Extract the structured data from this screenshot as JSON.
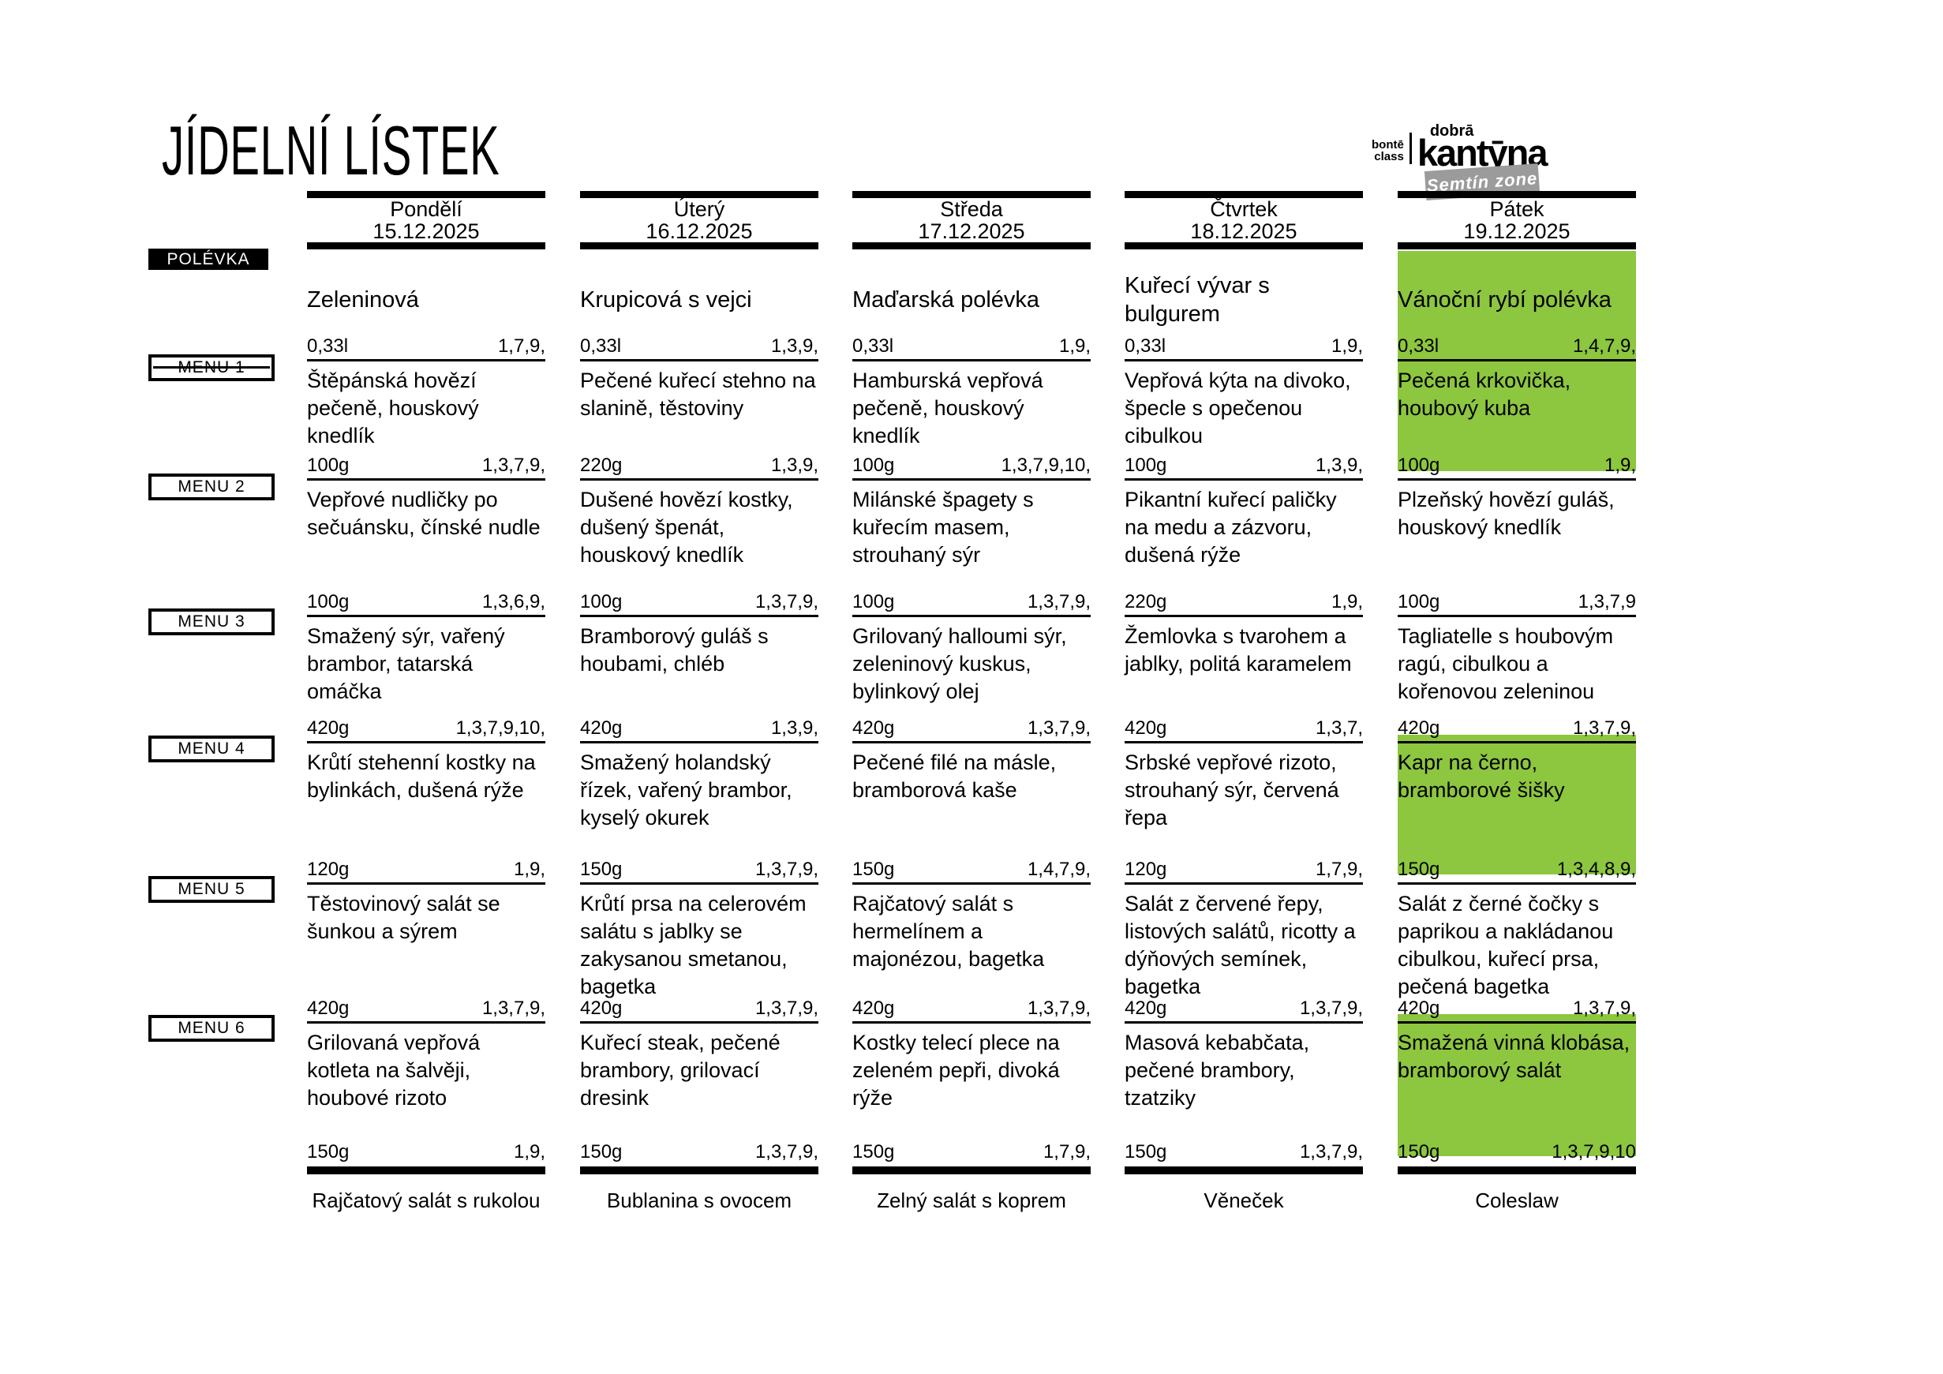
{
  "title": "JÍDELNÍ LÍSTEK",
  "logo": {
    "top_small": "bontē",
    "bottom_small": "class",
    "brand_small": "dobrā",
    "brand": "kantȳna",
    "ribbon": "Semtín zone"
  },
  "colors": {
    "highlight": "#8dc63f",
    "ribbon_gray": "#9b9b9b"
  },
  "row_labels": {
    "soup": "POLÉVKA",
    "menus": [
      "MENU 1",
      "MENU 2",
      "MENU 3",
      "MENU 4",
      "MENU 5",
      "MENU 6"
    ]
  },
  "days": [
    {
      "name": "Pondělí",
      "date": "15.12.2025",
      "soup": "Zeleninová",
      "items": [
        {
          "weight": "0,33l",
          "allergens": "1,7,9,",
          "dish": "Štěpánská hovězí pečeně, houskový knedlík"
        },
        {
          "weight": "100g",
          "allergens": "1,3,7,9,",
          "dish": "Vepřové nudličky po sečuánsku, čínské nudle"
        },
        {
          "weight": "100g",
          "allergens": "1,3,6,9,",
          "dish": "Smažený sýr, vařený brambor, tatarská omáčka"
        },
        {
          "weight": "420g",
          "allergens": "1,3,7,9,10,",
          "dish": "Krůtí stehenní kostky na bylinkách, dušená rýže"
        },
        {
          "weight": "120g",
          "allergens": "1,9,",
          "dish": "Těstovinový salát se šunkou a sýrem"
        },
        {
          "weight": "420g",
          "allergens": "1,3,7,9,",
          "dish": "Grilovaná vepřová kotleta na šalvěji, houbové rizoto"
        }
      ],
      "dessert": {
        "weight": "150g",
        "allergens": "1,9,",
        "name": "Rajčatový salát s rukolou"
      }
    },
    {
      "name": "Úterý",
      "date": "16.12.2025",
      "soup": "Krupicová s vejci",
      "items": [
        {
          "weight": "0,33l",
          "allergens": "1,3,9,",
          "dish": "Pečené kuřecí stehno na slanině, těstoviny"
        },
        {
          "weight": "220g",
          "allergens": "1,3,9,",
          "dish": "Dušené hovězí kostky, dušený špenát, houskový knedlík"
        },
        {
          "weight": "100g",
          "allergens": "1,3,7,9,",
          "dish": "Bramborový guláš s houbami, chléb"
        },
        {
          "weight": "420g",
          "allergens": "1,3,9,",
          "dish": "Smažený holandský řízek, vařený brambor, kyselý okurek"
        },
        {
          "weight": "150g",
          "allergens": "1,3,7,9,",
          "dish": "Krůtí prsa na celerovém salátu s jablky se zakysanou smetanou, bagetka"
        },
        {
          "weight": "420g",
          "allergens": "1,3,7,9,",
          "dish": "Kuřecí steak, pečené brambory, grilovací dresink"
        }
      ],
      "dessert": {
        "weight": "150g",
        "allergens": "1,3,7,9,",
        "name": "Bublanina s ovocem"
      }
    },
    {
      "name": "Středa",
      "date": "17.12.2025",
      "soup": "Maďarská polévka",
      "items": [
        {
          "weight": "0,33l",
          "allergens": "1,9,",
          "dish": "Hamburská vepřová pečeně, houskový knedlík"
        },
        {
          "weight": "100g",
          "allergens": "1,3,7,9,10,",
          "dish": "Milánské špagety s kuřecím masem, strouhaný sýr"
        },
        {
          "weight": "100g",
          "allergens": "1,3,7,9,",
          "dish": "Grilovaný halloumi sýr, zeleninový kuskus, bylinkový olej"
        },
        {
          "weight": "420g",
          "allergens": "1,3,7,9,",
          "dish": "Pečené filé na másle, bramborová kaše"
        },
        {
          "weight": "150g",
          "allergens": "1,4,7,9,",
          "dish": "Rajčatový salát s hermelínem a majonézou, bagetka"
        },
        {
          "weight": "420g",
          "allergens": "1,3,7,9,",
          "dish": "Kostky telecí plece na zeleném pepři, divoká rýže"
        }
      ],
      "dessert": {
        "weight": "150g",
        "allergens": "1,7,9,",
        "name": "Zelný salát s koprem"
      }
    },
    {
      "name": "Čtvrtek",
      "date": "18.12.2025",
      "soup": "Kuřecí vývar s bulgurem",
      "items": [
        {
          "weight": "0,33l",
          "allergens": "1,9,",
          "dish": "Vepřová kýta na divoko, špecle s opečenou cibulkou"
        },
        {
          "weight": "100g",
          "allergens": "1,3,9,",
          "dish": "Pikantní kuřecí paličky na medu a zázvoru, dušená rýže"
        },
        {
          "weight": "220g",
          "allergens": "1,9,",
          "dish": "Žemlovka s tvarohem a jablky, politá karamelem"
        },
        {
          "weight": "420g",
          "allergens": "1,3,7,",
          "dish": "Srbské vepřové rizoto, strouhaný sýr, červená řepa"
        },
        {
          "weight": "120g",
          "allergens": "1,7,9,",
          "dish": "Salát z červené řepy, listových salátů, ricotty a dýňových semínek, bagetka"
        },
        {
          "weight": "420g",
          "allergens": "1,3,7,9,",
          "dish": "Masová kebabčata, pečené brambory, tzatziky"
        }
      ],
      "dessert": {
        "weight": "150g",
        "allergens": "1,3,7,9,",
        "name": "Věneček"
      }
    },
    {
      "name": "Pátek",
      "date": "19.12.2025",
      "soup": "Vánoční rybí polévka",
      "soup_highlighted": true,
      "items": [
        {
          "weight": "0,33l",
          "allergens": "1,4,7,9,",
          "dish": "Pečená krkovička, houbový kuba",
          "highlighted": true
        },
        {
          "weight": "100g",
          "allergens": "1,9,",
          "dish": "Plzeňský hovězí guláš, houskový knedlík"
        },
        {
          "weight": "100g",
          "allergens": "1,3,7,9",
          "dish": "Tagliatelle s houbovým ragú, cibulkou a kořenovou zeleninou"
        },
        {
          "weight": "420g",
          "allergens": "1,3,7,9,",
          "dish": "Kapr na černo, bramborové šišky",
          "highlighted": true
        },
        {
          "weight": "150g",
          "allergens": "1,3,4,8,9,",
          "dish": "Salát z černé čočky s paprikou a nakládanou cibulkou, kuřecí prsa, pečená bagetka"
        },
        {
          "weight": "420g",
          "allergens": "1,3,7,9,",
          "dish": "Smažená vinná klobása, bramborový salát",
          "highlighted": true
        }
      ],
      "dessert": {
        "weight": "150g",
        "allergens": "1,3,7,9,10",
        "name": "Coleslaw"
      }
    }
  ]
}
